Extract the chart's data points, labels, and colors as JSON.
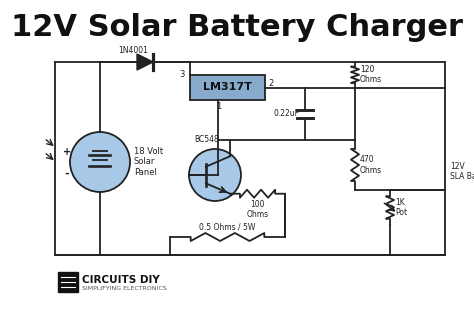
{
  "title": "12V Solar Battery Charger",
  "title_fontsize": 22,
  "title_fontweight": "bold",
  "bg_color": "#ffffff",
  "line_color": "#222222",
  "component_fill": "#a8c8e8",
  "lm317_fill": "#88aacc",
  "logo_text": "CIRCUITS DIY",
  "logo_sub": "SIMPLIFYING ELECTRONICS",
  "lw": 1.3
}
